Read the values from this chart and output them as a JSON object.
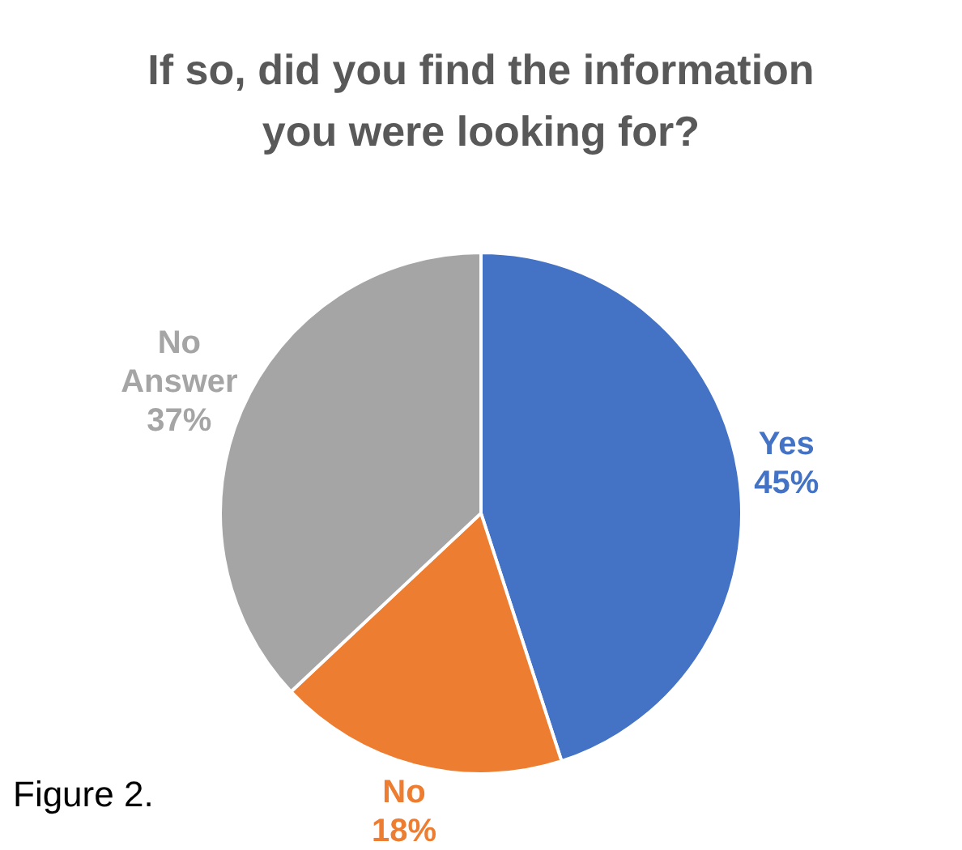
{
  "chart_data": {
    "type": "pie",
    "title": "If so, did you find the information you were looking for?",
    "categories": [
      "Yes",
      "No",
      "No Answer"
    ],
    "values": [
      45,
      18,
      37
    ],
    "colors": [
      "#4472c4",
      "#ed7d31",
      "#a5a5a5"
    ],
    "value_labels": [
      "45%",
      "18%",
      "37%"
    ],
    "legend": false,
    "annotations": [
      "Figure 2."
    ]
  }
}
